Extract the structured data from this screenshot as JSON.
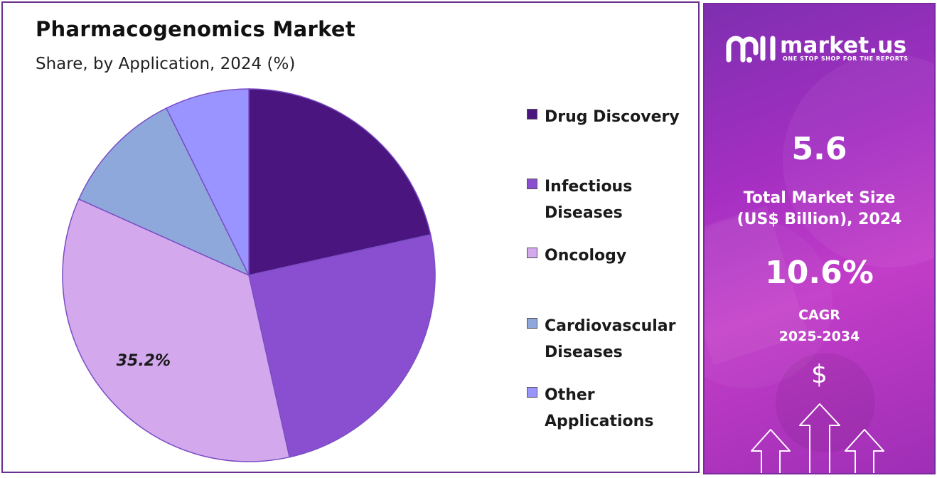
{
  "chart_data": {
    "type": "pie",
    "title": "Pharmacogenomics Market",
    "subtitle": "Share, by Application, 2024 (%)",
    "categories": [
      "Drug Discovery",
      "Infectious Diseases",
      "Oncology",
      "Cardiovascular Diseases",
      "Other Applications"
    ],
    "values": [
      21.5,
      25.0,
      35.2,
      11.0,
      7.3
    ],
    "colors": [
      "#4b1580",
      "#8a4fd0",
      "#d3a8ed",
      "#8ea8dc",
      "#9994ff"
    ],
    "data_labels": [
      "",
      "",
      "35.2%",
      "",
      ""
    ],
    "legend": {
      "placement": "right",
      "items": [
        {
          "line1": "Drug Discovery",
          "line2": "",
          "color": "#4b1580"
        },
        {
          "line1": "Infectious",
          "line2": "Diseases",
          "color": "#8a4fd0"
        },
        {
          "line1": "Oncology",
          "line2": "",
          "color": "#d3a8ed"
        },
        {
          "line1": "Cardiovascular",
          "line2": "Diseases",
          "color": "#8ea8dc"
        },
        {
          "line1": "Other",
          "line2": "Applications",
          "color": "#9994ff"
        }
      ]
    }
  },
  "sidebar": {
    "brand": "market.us",
    "tagline": "ONE STOP SHOP FOR THE REPORTS",
    "market_size_value": "5.6",
    "market_size_label_line1": "Total Market Size",
    "market_size_label_line2": "(US$ Billion), 2024",
    "cagr_value": "10.6%",
    "cagr_label_line1": "CAGR",
    "cagr_label_line2": "2025-2034",
    "dollar_symbol": "$",
    "icon": "market-us-logo-icon"
  }
}
